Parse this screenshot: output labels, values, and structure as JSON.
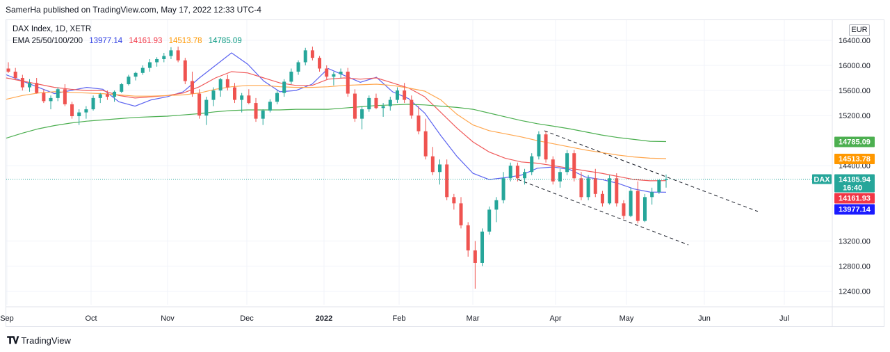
{
  "caption": "SamerHa published on TradingView.com, May 17, 2022 12:33 UTC-4",
  "legend": {
    "title": "DAX Index, 1D, XETR",
    "ema_label": "EMA 25/50/100/200",
    "ema_values": [
      "13977.14",
      "14161.93",
      "14513.78",
      "14785.09"
    ]
  },
  "currency": "EUR",
  "footer": {
    "logo_text": "TradingView"
  },
  "colors": {
    "up": "#26a69a",
    "down": "#ef5350",
    "ema25": "#5b63f0",
    "ema50": "#f05a5a",
    "ema100": "#ffa64d",
    "ema200": "#4caf50"
  },
  "chart_data": {
    "type": "candlestick",
    "title": "DAX Index, 1D, XETR",
    "symbol": "DAX",
    "ylim": [
      12200,
      16600
    ],
    "y_ticks": [
      "16400.00",
      "16000.00",
      "15600.00",
      "15200.00",
      "14400.00",
      "13200.00",
      "12800.00",
      "12400.00"
    ],
    "x_ticks": [
      "Sep",
      "Oct",
      "Nov",
      "Dec",
      "2022",
      "Feb",
      "Mar",
      "Apr",
      "May",
      "Jun",
      "Jul"
    ],
    "price_labels": [
      {
        "id": "ema200",
        "text": "14785.09",
        "value": 14785.09,
        "color": "#4caf50"
      },
      {
        "id": "ema100",
        "text": "14513.78",
        "value": 14513.78,
        "color": "#ff9800"
      },
      {
        "id": "last",
        "text": "14185.94",
        "sub": "16:40",
        "value": 14185.94,
        "color": "#26a69a"
      },
      {
        "id": "ema50",
        "text": "14161.93",
        "value": 14161.93,
        "color": "#f23645"
      },
      {
        "id": "ema25",
        "text": "13977.14",
        "value": 13977.14,
        "color": "#1a1aff"
      }
    ],
    "last_price": 14185.94,
    "ema_series": [
      {
        "name": "EMA 25",
        "values": [
          15850,
          15750,
          15650,
          15550,
          15600,
          15650,
          15620,
          15420,
          15350,
          15450,
          15500,
          15580,
          15800,
          16000,
          16200,
          16020,
          15750,
          15580,
          15600,
          15700,
          15950,
          15840,
          15730,
          15810,
          15580,
          15470,
          15240,
          14880,
          14550,
          14280,
          14180,
          14210,
          14250,
          14360,
          14380,
          14340,
          14220,
          14180,
          14120,
          14030,
          13980,
          13978
        ]
      },
      {
        "name": "EMA 50",
        "values": [
          15800,
          15750,
          15700,
          15650,
          15620,
          15600,
          15600,
          15520,
          15480,
          15500,
          15520,
          15560,
          15660,
          15800,
          15900,
          15880,
          15800,
          15720,
          15680,
          15680,
          15780,
          15800,
          15780,
          15800,
          15720,
          15640,
          15500,
          15250,
          15000,
          14780,
          14620,
          14520,
          14460,
          14440,
          14400,
          14360,
          14320,
          14280,
          14230,
          14180,
          14160,
          14162
        ]
      },
      {
        "name": "EMA 100",
        "values": [
          15460,
          15520,
          15560,
          15580,
          15570,
          15560,
          15550,
          15530,
          15510,
          15510,
          15520,
          15530,
          15560,
          15620,
          15660,
          15680,
          15680,
          15660,
          15650,
          15650,
          15660,
          15680,
          15690,
          15700,
          15680,
          15640,
          15590,
          15450,
          15220,
          15050,
          14960,
          14910,
          14860,
          14800,
          14750,
          14700,
          14650,
          14610,
          14570,
          14540,
          14520,
          14514
        ]
      },
      {
        "name": "EMA 200",
        "values": [
          14840,
          14920,
          14990,
          15040,
          15080,
          15110,
          15130,
          15150,
          15170,
          15180,
          15190,
          15210,
          15230,
          15260,
          15280,
          15290,
          15290,
          15290,
          15300,
          15300,
          15300,
          15320,
          15340,
          15360,
          15370,
          15380,
          15370,
          15350,
          15330,
          15300,
          15240,
          15180,
          15120,
          15070,
          15030,
          14990,
          14940,
          14890,
          14850,
          14820,
          14790,
          14785
        ]
      }
    ],
    "series": [
      {
        "name": "DAX",
        "ohlc": [
          [
            15950,
            16050,
            15880,
            15900
          ],
          [
            15900,
            15960,
            15780,
            15800
          ],
          [
            15800,
            15850,
            15600,
            15650
          ],
          [
            15650,
            15780,
            15580,
            15720
          ],
          [
            15720,
            15800,
            15550,
            15560
          ],
          [
            15560,
            15620,
            15400,
            15430
          ],
          [
            15430,
            15520,
            15300,
            15480
          ],
          [
            15480,
            15650,
            15430,
            15620
          ],
          [
            15620,
            15700,
            15350,
            15380
          ],
          [
            15380,
            15420,
            15150,
            15190
          ],
          [
            15190,
            15300,
            15050,
            15250
          ],
          [
            15250,
            15350,
            15150,
            15300
          ],
          [
            15300,
            15520,
            15280,
            15480
          ],
          [
            15480,
            15560,
            15400,
            15540
          ],
          [
            15540,
            15600,
            15450,
            15500
          ],
          [
            15500,
            15600,
            15420,
            15580
          ],
          [
            15580,
            15720,
            15560,
            15700
          ],
          [
            15700,
            15850,
            15680,
            15820
          ],
          [
            15820,
            15900,
            15760,
            15880
          ],
          [
            15880,
            16000,
            15850,
            15960
          ],
          [
            15960,
            16100,
            15900,
            16050
          ],
          [
            16050,
            16130,
            15980,
            16100
          ],
          [
            16100,
            16200,
            16050,
            16150
          ],
          [
            16150,
            16290,
            16100,
            16240
          ],
          [
            16240,
            16300,
            16050,
            16080
          ],
          [
            16080,
            16120,
            15700,
            15750
          ],
          [
            15750,
            15900,
            15500,
            15550
          ],
          [
            15550,
            15620,
            15150,
            15200
          ],
          [
            15200,
            15500,
            15050,
            15450
          ],
          [
            15450,
            15650,
            15350,
            15600
          ],
          [
            15600,
            15800,
            15500,
            15780
          ],
          [
            15780,
            15850,
            15600,
            15650
          ],
          [
            15650,
            15720,
            15400,
            15450
          ],
          [
            15450,
            15560,
            15250,
            15520
          ],
          [
            15520,
            15620,
            15380,
            15400
          ],
          [
            15400,
            15480,
            15100,
            15150
          ],
          [
            15150,
            15300,
            15050,
            15280
          ],
          [
            15280,
            15460,
            15250,
            15420
          ],
          [
            15420,
            15600,
            15380,
            15560
          ],
          [
            15560,
            15780,
            15500,
            15740
          ],
          [
            15740,
            15950,
            15700,
            15900
          ],
          [
            15900,
            16080,
            15850,
            16050
          ],
          [
            16050,
            16280,
            16000,
            16240
          ],
          [
            16240,
            16300,
            16080,
            16120
          ],
          [
            16120,
            16150,
            15900,
            15950
          ],
          [
            15950,
            16000,
            15780,
            15820
          ],
          [
            15820,
            15900,
            15680,
            15860
          ],
          [
            15860,
            15950,
            15800,
            15900
          ],
          [
            15900,
            15960,
            15500,
            15550
          ],
          [
            15550,
            15620,
            15100,
            15150
          ],
          [
            15150,
            15350,
            14980,
            15300
          ],
          [
            15300,
            15520,
            15260,
            15480
          ],
          [
            15480,
            15550,
            15300,
            15320
          ],
          [
            15320,
            15400,
            15180,
            15350
          ],
          [
            15350,
            15500,
            15280,
            15450
          ],
          [
            15450,
            15650,
            15400,
            15600
          ],
          [
            15600,
            15720,
            15400,
            15450
          ],
          [
            15450,
            15520,
            15150,
            15200
          ],
          [
            15200,
            15350,
            14900,
            14950
          ],
          [
            14950,
            15150,
            14500,
            14550
          ],
          [
            14550,
            14700,
            14250,
            14300
          ],
          [
            14300,
            14500,
            14100,
            14420
          ],
          [
            14420,
            14500,
            13850,
            13900
          ],
          [
            13900,
            13950,
            13700,
            13800
          ],
          [
            13800,
            13900,
            13400,
            13450
          ],
          [
            13450,
            13500,
            12950,
            13050
          ],
          [
            13050,
            13200,
            12440,
            12850
          ],
          [
            12850,
            13400,
            12800,
            13350
          ],
          [
            13350,
            13750,
            13300,
            13700
          ],
          [
            13700,
            13900,
            13500,
            13850
          ],
          [
            13850,
            14300,
            13800,
            14200
          ],
          [
            14200,
            14450,
            14150,
            14400
          ],
          [
            14400,
            14450,
            14150,
            14200
          ],
          [
            14200,
            14350,
            14100,
            14300
          ],
          [
            14300,
            14600,
            14250,
            14550
          ],
          [
            14550,
            14950,
            14500,
            14900
          ],
          [
            14900,
            14950,
            14450,
            14500
          ],
          [
            14500,
            14550,
            14100,
            14150
          ],
          [
            14150,
            14350,
            14050,
            14300
          ],
          [
            14300,
            14650,
            14250,
            14600
          ],
          [
            14600,
            14650,
            14150,
            14200
          ],
          [
            14200,
            14300,
            13850,
            13900
          ],
          [
            13900,
            14250,
            13850,
            14200
          ],
          [
            14200,
            14350,
            13900,
            13950
          ],
          [
            13950,
            14000,
            13750,
            13800
          ],
          [
            13800,
            14250,
            13780,
            14200
          ],
          [
            14200,
            14280,
            13750,
            13800
          ],
          [
            13800,
            13850,
            13550,
            13600
          ],
          [
            13600,
            14050,
            13580,
            14000
          ],
          [
            14000,
            14150,
            13480,
            13520
          ],
          [
            13520,
            13950,
            13500,
            13900
          ],
          [
            13900,
            14050,
            13780,
            13980
          ],
          [
            13980,
            14180,
            13950,
            14170
          ],
          [
            14170,
            14260,
            14050,
            14186
          ]
        ]
      }
    ]
  }
}
